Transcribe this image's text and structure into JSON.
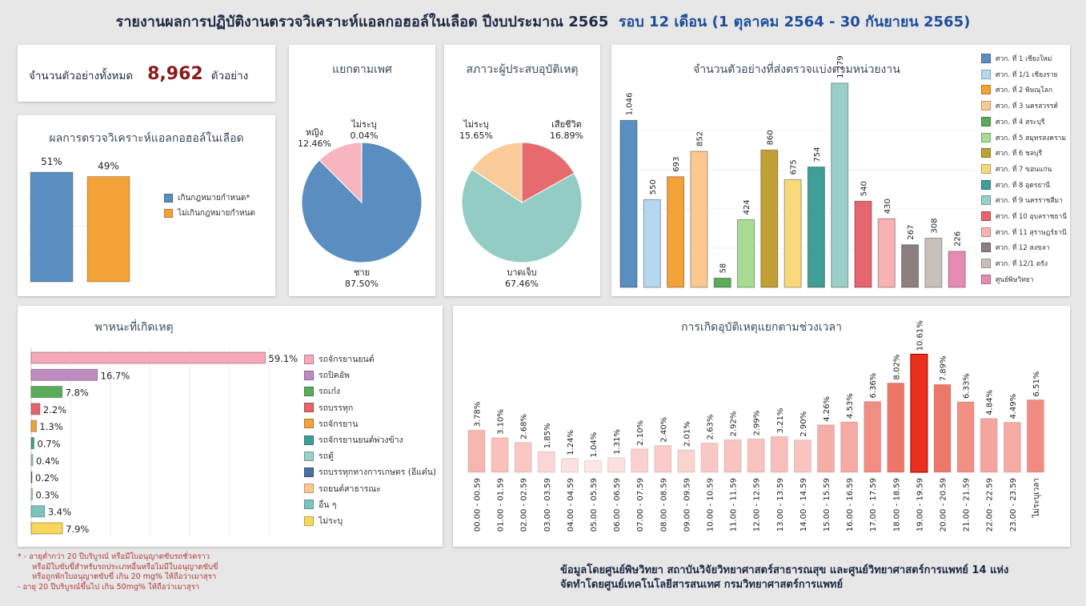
{
  "header": {
    "title": "รายงานผลการปฏิบัติงานตรวจวิเคราะห์แอลกอฮอล์ในเลือด ปีงบประมาณ 2565",
    "title_period": "รอบ 12 เดือน (1 ตุลาคม 2564 - 30 กันยายน 2565)"
  },
  "total": {
    "label": "จำนวนตัวอย่างทั้งหมด",
    "value": "8,962",
    "unit": "ตัวอย่าง",
    "value_color": "#8b1a1a"
  },
  "footnote": {
    "lines": [
      "* - อายุต่ำกว่า 20 ปีบริบูรณ์ หรือมีใบอนุญาตขับรถชั่วคราว",
      "   หรือมีใบขับขี่สำหรับรถประเภทอื่นหรือไม่มีใบอนุญาตขับขี่",
      "   หรือถูกพักใบอนุญาตขับขี่ เกิน 20 mg% ให้ถือว่าเมาสุรา",
      "  - อายุ 20 ปีบริบูรณ์ขึ้นไป เกิน 50mg% ให้ถือว่าเมาสุรา"
    ]
  },
  "source": {
    "line1": "ข้อมูลโดยศูนย์พิษวิทยา สถาบันวิจัยวิทยาศาสตร์สาธารณสุข และศูนย์วิทยาศาสตร์การแพทย์ 14 แห่ง",
    "line2": "จัดทำโดยศูนย์เทคโนโลยีสารสนเทศ กรมวิทยาศาสตร์การแพทย์"
  },
  "chart_data": [
    {
      "id": "result",
      "type": "bar",
      "title": "ผลการตรวจวิเคราะห์แอลกอฮอล์ในเลือด",
      "categories": [
        "เกินกฎหมายกำหนด*",
        "ไม่เกินกฎหมายกำหนด"
      ],
      "values": [
        51,
        49
      ],
      "data_labels": [
        "51%",
        "49%"
      ],
      "colors": [
        "#5b8ec0",
        "#f2a236"
      ],
      "legend": [
        "เกินกฎหมายกำหนด*",
        "ไม่เกินกฎหมายกำหนด"
      ],
      "legend_position": "right",
      "ylim": [
        0,
        60
      ]
    },
    {
      "id": "gender",
      "type": "pie",
      "title": "แยกตามเพศ",
      "slices": [
        {
          "label": "ชาย",
          "value": 87.5,
          "text": "87.50%",
          "color": "#5b8ec0"
        },
        {
          "label": "หญิง",
          "value": 12.46,
          "text": "12.46%",
          "color": "#f7b5c2"
        },
        {
          "label": "ไม่ระบุ",
          "value": 0.04,
          "text": "0.04%",
          "color": "#e5e5e5"
        }
      ]
    },
    {
      "id": "victim",
      "type": "pie",
      "title": "สภาวะผู้ประสบอุบัติเหตุ",
      "slices": [
        {
          "label": "เสียชีวิต",
          "value": 16.89,
          "text": "16.89%",
          "color": "#e56b6f"
        },
        {
          "label": "บาดเจ็บ",
          "value": 67.46,
          "text": "67.46%",
          "color": "#93ccc4"
        },
        {
          "label": "ไม่ระบุ",
          "value": 15.65,
          "text": "15.65%",
          "color": "#f9cc9a"
        }
      ]
    },
    {
      "id": "units",
      "type": "bar",
      "title": "จำนวนตัวอย่างที่ส่งตรวจแบ่งตามหน่วยงาน",
      "categories": [
        "ศวก. ที่ 1 เชียงใหม่",
        "ศวก. ที่ 1/1 เชียงราย",
        "ศวก. ที่ 2 พิษณุโลก",
        "ศวก. ที่ 3 นครสวรรค์",
        "ศวก. ที่ 4 สระบุรี",
        "ศวก. ที่ 5 สมุทรสงคราม",
        "ศวก. ที่ 6 ชลบุรี",
        "ศวก. ที่ 7 ขอนแก่น",
        "ศวก. ที่ 8 อุดรธานี",
        "ศวก. ที่ 9 นครราชสีมา",
        "ศวก. ที่ 10 อุบลราชธานี",
        "ศวก. ที่ 11 สุราษฎร์ธานี",
        "ศวก. ที่ 12 สงขลา",
        "ศวก. ที่ 12/1 ตรัง",
        "ศูนย์พิษวิทยา"
      ],
      "values": [
        1046,
        550,
        693,
        852,
        58,
        424,
        860,
        675,
        754,
        1279,
        540,
        430,
        267,
        308,
        226
      ],
      "data_labels": [
        "1,046",
        "550",
        "693",
        "852",
        "58",
        "424",
        "860",
        "675",
        "754",
        "1,279",
        "540",
        "430",
        "267",
        "308",
        "226"
      ],
      "colors": [
        "#5b8ec0",
        "#b4d8f0",
        "#f2a236",
        "#fcc890",
        "#5aab5a",
        "#a8dc92",
        "#c0a032",
        "#f7d97a",
        "#3f9e96",
        "#98cfc6",
        "#e5646e",
        "#f9b1b4",
        "#8c7f7f",
        "#c9c1b9",
        "#e58bb1"
      ],
      "legend_position": "right",
      "ylim": [
        0,
        1400
      ]
    },
    {
      "id": "vehicle",
      "type": "bar",
      "orientation": "horizontal",
      "title": "พาหนะที่เกิดเหตุ",
      "categories": [
        "รถจักรยานยนต์",
        "รถปิคอัพ",
        "รถเก๋ง",
        "รถบรรทุก",
        "รถจักรยาน",
        "รถจักรยานยนต์พ่วงข้าง",
        "รถตู้",
        "รถบรรทุกทางการเกษตร (อีแต๋น)",
        "รถยนต์สาธารณะ",
        "อื่น ๆ",
        "ไม่ระบุ"
      ],
      "values": [
        59.1,
        16.7,
        7.8,
        2.2,
        1.3,
        0.7,
        0.4,
        0.2,
        0.3,
        3.4,
        7.9
      ],
      "data_labels": [
        "59.1%",
        "16.7%",
        "7.8%",
        "2.2%",
        "1.3%",
        "0.7%",
        "0.4%",
        "0.2%",
        "0.3%",
        "3.4%",
        "7.9%"
      ],
      "colors": [
        "#f7a8b8",
        "#bf8abf",
        "#5aab5a",
        "#e5646e",
        "#f2a236",
        "#3f9e96",
        "#98cfc6",
        "#4a6fa0",
        "#fcc890",
        "#7cc4c0",
        "#f7d65a"
      ],
      "legend_position": "right",
      "xlim": [
        0,
        70
      ]
    },
    {
      "id": "time",
      "type": "bar",
      "title": "การเกิดอุบัติเหตุแยกตามช่วงเวลา",
      "categories": [
        "00.00 - 00.59",
        "01.00 - 01.59",
        "02.00 - 02.59",
        "03.00 - 03.59",
        "04.00 - 04.59",
        "05.00 - 05.59",
        "06.00 - 06.59",
        "07.00 - 07.59",
        "08.00 - 08.59",
        "09.00 - 09.59",
        "10.00 - 10.59",
        "11.00 - 11.59",
        "12.00 - 12.59",
        "13.00 - 13.59",
        "14.00 - 14.59",
        "15.00 - 15.59",
        "16.00 - 16.59",
        "17.00 - 17.59",
        "18.00 - 18.59",
        "19.00 - 19.59",
        "20.00 - 20.59",
        "21.00 - 21.59",
        "22.00 - 22.59",
        "23.00 - 23.59",
        "ไม่ระบุเวลา"
      ],
      "values": [
        3.78,
        3.1,
        2.68,
        1.85,
        1.24,
        1.04,
        1.31,
        2.1,
        2.4,
        2.01,
        2.63,
        2.92,
        2.99,
        3.21,
        2.9,
        4.26,
        4.53,
        6.36,
        8.02,
        10.61,
        7.89,
        6.33,
        4.84,
        4.49,
        6.51
      ],
      "data_labels": [
        "3.78%",
        "3.10%",
        "2.68%",
        "1.85%",
        "1.24%",
        "1.04%",
        "1.31%",
        "2.10%",
        "2.40%",
        "2.01%",
        "2.63%",
        "2.92%",
        "2.99%",
        "3.21%",
        "2.90%",
        "4.26%",
        "4.53%",
        "6.36%",
        "8.02%",
        "10.61%",
        "7.89%",
        "6.33%",
        "4.84%",
        "4.49%",
        "6.51%"
      ],
      "color_low": "#fde6e6",
      "color_high": "#e8513f",
      "color_max": "#e8301c",
      "ylim": [
        0,
        12
      ]
    }
  ]
}
